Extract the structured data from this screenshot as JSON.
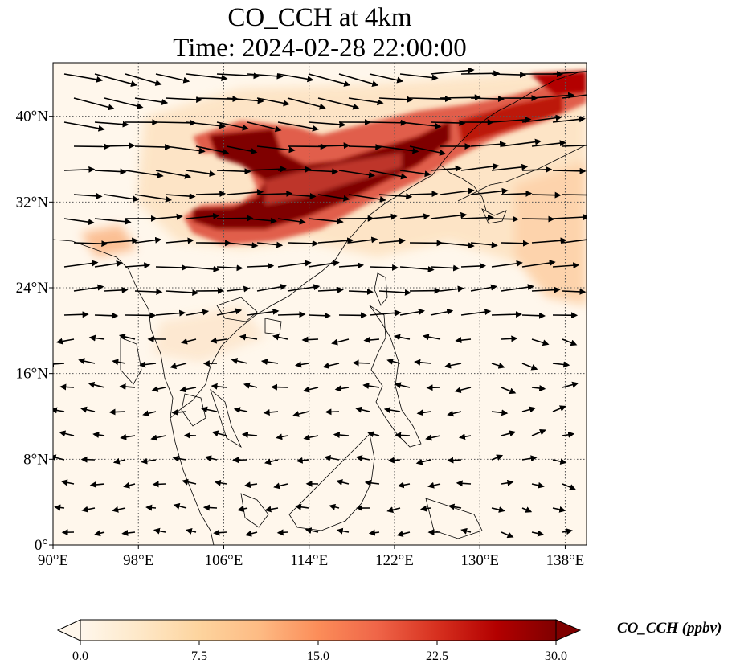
{
  "title": {
    "line1": "CO_CCH at 4km",
    "line2": "Time: 2024-02-28 22:00:00"
  },
  "map": {
    "lon_range": [
      90,
      140
    ],
    "lat_range": [
      0,
      45
    ],
    "lon_ticks": [
      {
        "value": 90,
        "label": "90°E"
      },
      {
        "value": 98,
        "label": "98°E"
      },
      {
        "value": 106,
        "label": "106°E"
      },
      {
        "value": 114,
        "label": "114°E"
      },
      {
        "value": 122,
        "label": "122°E"
      },
      {
        "value": 130,
        "label": "130°E"
      },
      {
        "value": 138,
        "label": "138°E"
      }
    ],
    "lat_ticks": [
      {
        "value": 0,
        "label": "0°"
      },
      {
        "value": 8,
        "label": "8°N"
      },
      {
        "value": 16,
        "label": "16°N"
      },
      {
        "value": 24,
        "label": "24°N"
      },
      {
        "value": 32,
        "label": "32°N"
      },
      {
        "value": 40,
        "label": "40°N"
      }
    ],
    "gridlines": true,
    "wind_vectors": "black arrows",
    "colors": {
      "background": "#fff7ec",
      "coastline": "#000000",
      "gridline": "#555555"
    }
  },
  "colorbar": {
    "label": "CO_CCH (ppbv)",
    "min": 0.0,
    "max": 30.0,
    "ticks": [
      "0.0",
      "7.5",
      "15.0",
      "22.5",
      "30.0"
    ],
    "colormap": [
      "#fff7ec",
      "#fee8c8",
      "#fdd49e",
      "#fdbb84",
      "#fc8d59",
      "#ef6548",
      "#d7301f",
      "#b30000",
      "#7f0000"
    ],
    "extend": "both"
  }
}
